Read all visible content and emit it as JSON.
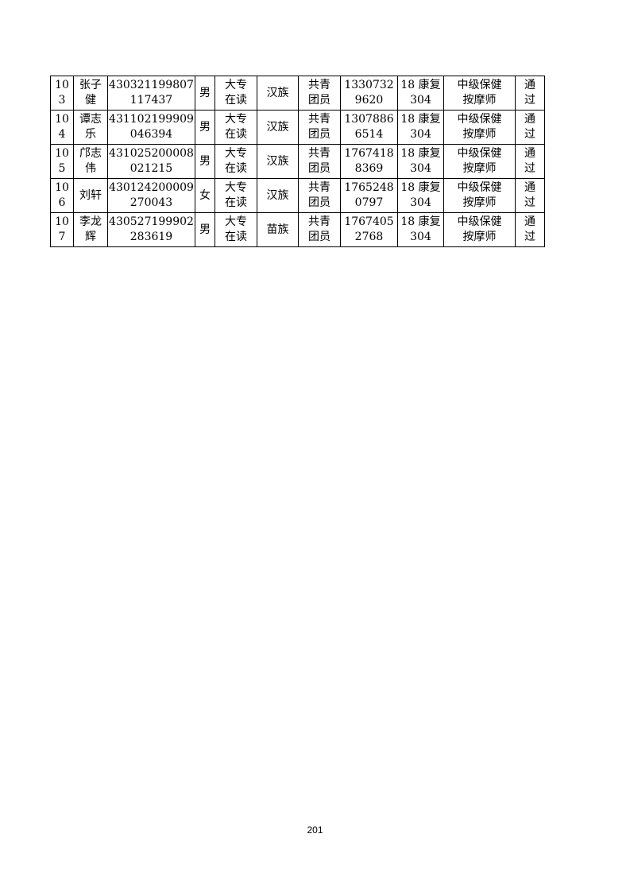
{
  "page": {
    "number": "201",
    "background_color": "#ffffff",
    "text_color": "#000000"
  },
  "table": {
    "border_color": "#000000",
    "rows": [
      [
        "10\n3",
        "张子\n健",
        "430321199807\n117437",
        "男",
        "大专\n在读",
        "汉族",
        "共青\n团员",
        "1330732\n9620",
        "18 康复\n304",
        "中级保健\n按摩师",
        "通\n过"
      ],
      [
        "10\n4",
        "谭志\n乐",
        "431102199909\n046394",
        "男",
        "大专\n在读",
        "汉族",
        "共青\n团员",
        "1307886\n6514",
        "18 康复\n304",
        "中级保健\n按摩师",
        "通\n过"
      ],
      [
        "10\n5",
        "邝志\n伟",
        "431025200008\n021215",
        "男",
        "大专\n在读",
        "汉族",
        "共青\n团员",
        "1767418\n8369",
        "18 康复\n304",
        "中级保健\n按摩师",
        "通\n过"
      ],
      [
        "10\n6",
        "刘轩",
        "430124200009\n270043",
        "女",
        "大专\n在读",
        "汉族",
        "共青\n团员",
        "1765248\n0797",
        "18 康复\n304",
        "中级保健\n按摩师",
        "通\n过"
      ],
      [
        "10\n7",
        "李龙\n辉",
        "430527199902\n283619",
        "男",
        "大专\n在读",
        "苗族",
        "共青\n团员",
        "1767405\n2768",
        "18 康复\n304",
        "中级保健\n按摩师",
        "通\n过"
      ]
    ]
  }
}
